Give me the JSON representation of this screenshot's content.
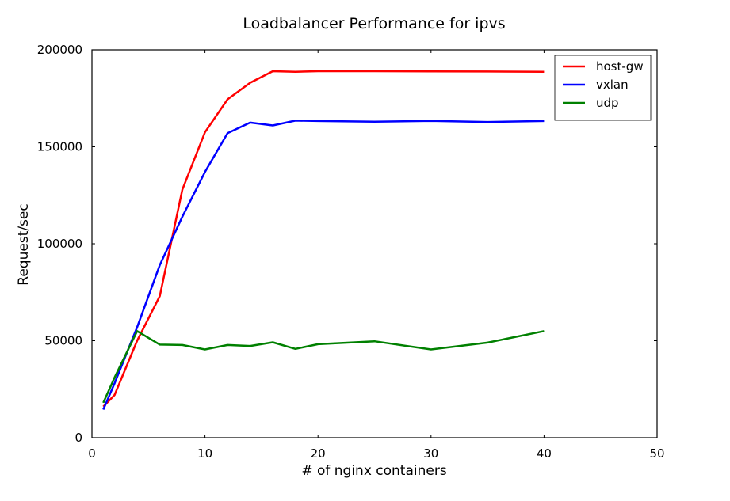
{
  "chart_data": {
    "type": "line",
    "title": "Loadbalancer Performance for ipvs",
    "xlabel": "# of nginx containers",
    "ylabel": "Request/sec",
    "xlim": [
      0,
      50
    ],
    "ylim": [
      0,
      200000
    ],
    "xticks": [
      0,
      10,
      20,
      30,
      40,
      50
    ],
    "yticks": [
      0,
      50000,
      100000,
      150000,
      200000
    ],
    "xtick_labels": [
      "0",
      "10",
      "20",
      "30",
      "40",
      "50"
    ],
    "ytick_labels": [
      "0",
      "50000",
      "100000",
      "150000",
      "200000"
    ],
    "grid": false,
    "legend_position": "top-right",
    "series": [
      {
        "name": "host-gw",
        "color": "#ff0000",
        "points": [
          [
            1,
            16000
          ],
          [
            2,
            22000
          ],
          [
            4,
            50000
          ],
          [
            6,
            73000
          ],
          [
            8,
            128000
          ],
          [
            10,
            157500
          ],
          [
            12,
            174500
          ],
          [
            14,
            183000
          ],
          [
            16,
            189000
          ],
          [
            18,
            188700
          ],
          [
            20,
            189000
          ],
          [
            25,
            189000
          ],
          [
            30,
            188900
          ],
          [
            35,
            188800
          ],
          [
            40,
            188700
          ]
        ]
      },
      {
        "name": "vxlan",
        "color": "#0000ff",
        "points": [
          [
            1,
            14500
          ],
          [
            2,
            28000
          ],
          [
            4,
            57000
          ],
          [
            6,
            89000
          ],
          [
            8,
            114000
          ],
          [
            10,
            137000
          ],
          [
            12,
            157000
          ],
          [
            14,
            162500
          ],
          [
            16,
            161000
          ],
          [
            18,
            163500
          ],
          [
            20,
            163300
          ],
          [
            25,
            163000
          ],
          [
            30,
            163400
          ],
          [
            35,
            162800
          ],
          [
            40,
            163300
          ]
        ]
      },
      {
        "name": "udp",
        "color": "#008000",
        "points": [
          [
            1,
            18000
          ],
          [
            2,
            31000
          ],
          [
            4,
            55000
          ],
          [
            6,
            48000
          ],
          [
            8,
            47800
          ],
          [
            10,
            45500
          ],
          [
            12,
            47800
          ],
          [
            14,
            47300
          ],
          [
            16,
            49200
          ],
          [
            18,
            45800
          ],
          [
            20,
            48200
          ],
          [
            25,
            49700
          ],
          [
            30,
            45500
          ],
          [
            35,
            49000
          ],
          [
            40,
            55000
          ]
        ]
      }
    ]
  }
}
